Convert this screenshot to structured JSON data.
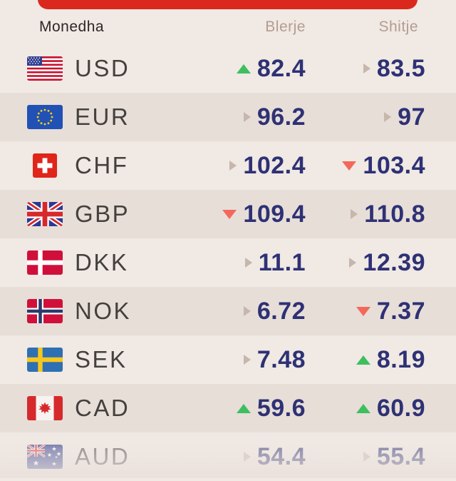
{
  "colors": {
    "bg_light": "#f0e9e4",
    "bg_dark": "#e7ded8",
    "red": "#da291c",
    "navy": "#2e3174",
    "code": "#44403d",
    "muted": "#b59c90",
    "header_dark": "#2b2826",
    "green": "#3dbf5f",
    "down": "#f4685c",
    "steady": "#c7b6ac"
  },
  "table": {
    "columns": {
      "currency": "Monedha",
      "buy": "Blerje",
      "sell": "Shitje"
    },
    "rows": [
      {
        "code": "USD",
        "flag": "usa-flag",
        "buy": "82.4",
        "buy_trend": "up",
        "sell": "83.5",
        "sell_trend": "steady"
      },
      {
        "code": "EUR",
        "flag": "eu-flag",
        "buy": "96.2",
        "buy_trend": "steady",
        "sell": "97",
        "sell_trend": "steady"
      },
      {
        "code": "CHF",
        "flag": "switzerland-flag",
        "buy": "102.4",
        "buy_trend": "steady",
        "sell": "103.4",
        "sell_trend": "down"
      },
      {
        "code": "GBP",
        "flag": "uk-flag",
        "buy": "109.4",
        "buy_trend": "down",
        "sell": "110.8",
        "sell_trend": "steady"
      },
      {
        "code": "DKK",
        "flag": "denmark-flag",
        "buy": "11.1",
        "buy_trend": "steady",
        "sell": "12.39",
        "sell_trend": "steady"
      },
      {
        "code": "NOK",
        "flag": "norway-flag",
        "buy": "6.72",
        "buy_trend": "steady",
        "sell": "7.37",
        "sell_trend": "down"
      },
      {
        "code": "SEK",
        "flag": "sweden-flag",
        "buy": "7.48",
        "buy_trend": "steady",
        "sell": "8.19",
        "sell_trend": "up"
      },
      {
        "code": "CAD",
        "flag": "canada-flag",
        "buy": "59.6",
        "buy_trend": "up",
        "sell": "60.9",
        "sell_trend": "up"
      },
      {
        "code": "AUD",
        "flag": "australia-flag",
        "buy": "54.4",
        "buy_trend": "steady",
        "sell": "55.4",
        "sell_trend": "steady"
      }
    ]
  }
}
